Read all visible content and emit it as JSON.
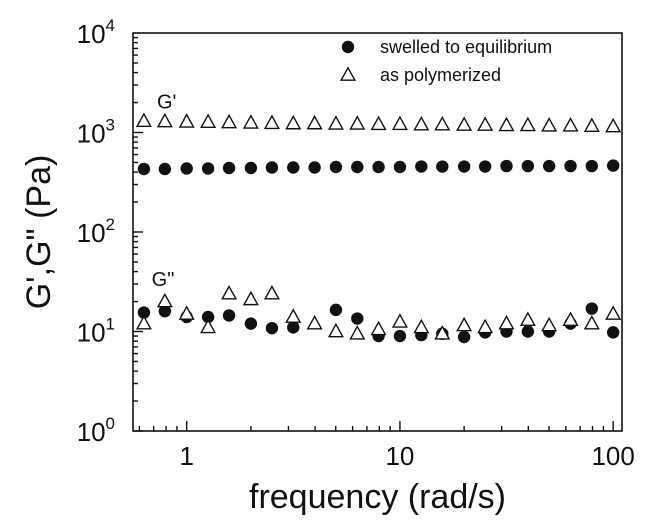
{
  "chart_data": {
    "type": "scatter",
    "title": "",
    "xlabel": "frequency (rad/s)",
    "ylabel": "G',G\" (Pa)",
    "x_scale": "log",
    "y_scale": "log",
    "xlim": [
      0.56,
      110
    ],
    "ylim": [
      1,
      10000
    ],
    "x_ticks": [
      {
        "value": 1,
        "label": "1"
      },
      {
        "value": 10,
        "label": "10"
      },
      {
        "value": 100,
        "label": "100"
      }
    ],
    "y_ticks": [
      {
        "value": 1,
        "base": "10",
        "exp": "0"
      },
      {
        "value": 10,
        "base": "10",
        "exp": "1"
      },
      {
        "value": 100,
        "base": "10",
        "exp": "2"
      },
      {
        "value": 1000,
        "base": "10",
        "exp": "3"
      },
      {
        "value": 10000,
        "base": "10",
        "exp": "4"
      }
    ],
    "grid": false,
    "legend_position": "top-right",
    "annotations": [
      {
        "text": "G'",
        "x": 0.9,
        "y": 2000
      },
      {
        "text": "G\"",
        "x": 0.85,
        "y": 33
      }
    ],
    "series": [
      {
        "name": "swelled to equilibrium",
        "marker": "filled-circle",
        "points": [
          [
            0.63,
            430
          ],
          [
            0.79,
            430
          ],
          [
            1.0,
            435
          ],
          [
            1.26,
            435
          ],
          [
            1.58,
            440
          ],
          [
            2.0,
            440
          ],
          [
            2.51,
            445
          ],
          [
            3.16,
            445
          ],
          [
            3.98,
            445
          ],
          [
            5.01,
            450
          ],
          [
            6.31,
            450
          ],
          [
            7.94,
            450
          ],
          [
            10.0,
            450
          ],
          [
            12.6,
            455
          ],
          [
            15.8,
            455
          ],
          [
            20.0,
            455
          ],
          [
            25.1,
            455
          ],
          [
            31.6,
            460
          ],
          [
            39.8,
            460
          ],
          [
            50.1,
            460
          ],
          [
            63.1,
            460
          ],
          [
            79.4,
            460
          ],
          [
            100.0,
            465
          ],
          [
            0.63,
            15.5
          ],
          [
            0.79,
            16.0
          ],
          [
            1.0,
            14.0
          ],
          [
            1.26,
            14.0
          ],
          [
            1.58,
            14.5
          ],
          [
            2.0,
            12.0
          ],
          [
            2.51,
            10.8
          ],
          [
            3.16,
            11.0
          ],
          [
            5.01,
            16.5
          ],
          [
            6.31,
            13.5
          ],
          [
            7.94,
            9.0
          ],
          [
            10.0,
            9.0
          ],
          [
            12.6,
            9.2
          ],
          [
            15.8,
            9.5
          ],
          [
            20.0,
            8.8
          ],
          [
            25.1,
            9.8
          ],
          [
            31.6,
            10.0
          ],
          [
            39.8,
            10.0
          ],
          [
            50.1,
            10.0
          ],
          [
            63.1,
            12.0
          ],
          [
            79.4,
            17.0
          ],
          [
            100.0,
            9.8
          ]
        ]
      },
      {
        "name": "as polymerized",
        "marker": "open-triangle",
        "points": [
          [
            0.63,
            1300
          ],
          [
            0.79,
            1290
          ],
          [
            1.0,
            1280
          ],
          [
            1.26,
            1270
          ],
          [
            1.58,
            1260
          ],
          [
            2.0,
            1250
          ],
          [
            2.51,
            1240
          ],
          [
            3.16,
            1230
          ],
          [
            3.98,
            1230
          ],
          [
            5.01,
            1220
          ],
          [
            6.31,
            1220
          ],
          [
            7.94,
            1210
          ],
          [
            10.0,
            1210
          ],
          [
            12.6,
            1200
          ],
          [
            15.8,
            1200
          ],
          [
            20.0,
            1190
          ],
          [
            25.1,
            1190
          ],
          [
            31.6,
            1180
          ],
          [
            39.8,
            1180
          ],
          [
            50.1,
            1170
          ],
          [
            63.1,
            1170
          ],
          [
            79.4,
            1160
          ],
          [
            100.0,
            1150
          ],
          [
            0.63,
            12.0
          ],
          [
            0.79,
            20.0
          ],
          [
            1.0,
            15.0
          ],
          [
            1.26,
            11.0
          ],
          [
            1.58,
            24.0
          ],
          [
            2.0,
            21.0
          ],
          [
            2.51,
            24.0
          ],
          [
            3.16,
            14.0
          ],
          [
            3.98,
            12.0
          ],
          [
            5.01,
            10.0
          ],
          [
            6.31,
            9.5
          ],
          [
            7.94,
            10.5
          ],
          [
            10.0,
            12.5
          ],
          [
            12.6,
            11.0
          ],
          [
            15.8,
            9.5
          ],
          [
            20.0,
            11.5
          ],
          [
            25.1,
            11.0
          ],
          [
            31.6,
            12.0
          ],
          [
            39.8,
            13.0
          ],
          [
            50.1,
            11.5
          ],
          [
            63.1,
            13.0
          ],
          [
            79.4,
            12.0
          ],
          [
            100.0,
            15.0
          ]
        ]
      }
    ]
  }
}
